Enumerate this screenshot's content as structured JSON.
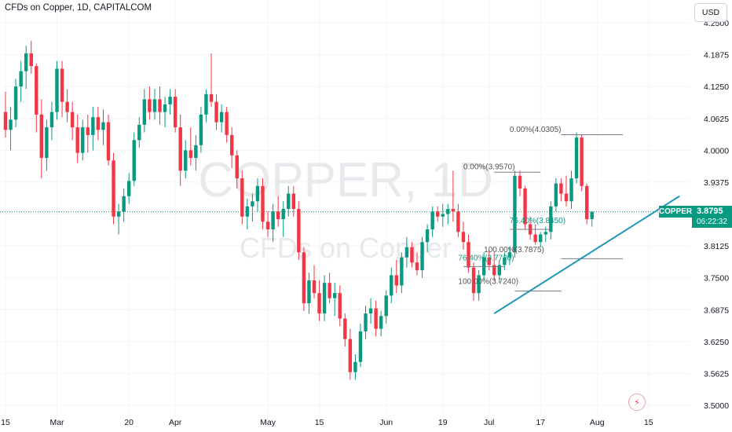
{
  "header": {
    "title": "CFDs on Copper, 1D, CAPITALCOM"
  },
  "currency": "USD",
  "watermark": {
    "symbol": "COPPER, 1D",
    "name": "CFDs on Copper"
  },
  "price_tag": {
    "symbol": "COPPER",
    "price": "3.8795",
    "countdown": "06:22:32"
  },
  "flash_icon": "lightning-icon",
  "colors": {
    "up": "#089981",
    "down": "#f23645",
    "trendline": "#2196b8",
    "fib_text_teal": "#089981",
    "fib_text_grey": "#555555"
  },
  "chart_data": {
    "type": "candlestick",
    "y_ticks": [
      "4.2500",
      "4.1875",
      "4.1250",
      "4.0625",
      "4.0000",
      "3.9375",
      "3.8750",
      "3.8125",
      "3.7500",
      "3.6875",
      "3.6250",
      "3.5625",
      "3.5000"
    ],
    "ylim": [
      3.5,
      4.25
    ],
    "x_ticks": [
      {
        "label": "15",
        "i": 0
      },
      {
        "label": "Mar",
        "i": 10
      },
      {
        "label": "20",
        "i": 24
      },
      {
        "label": "Apr",
        "i": 33
      },
      {
        "label": "May",
        "i": 51
      },
      {
        "label": "15",
        "i": 61
      },
      {
        "label": "Jun",
        "i": 74
      },
      {
        "label": "19",
        "i": 85
      },
      {
        "label": "Jul",
        "i": 94
      },
      {
        "label": "17",
        "i": 104
      },
      {
        "label": "Aug",
        "i": 115
      },
      {
        "label": "15",
        "i": 125
      }
    ],
    "candles": [
      [
        4.075,
        4.115,
        4.025,
        4.04
      ],
      [
        4.04,
        4.085,
        4.0,
        4.06
      ],
      [
        4.06,
        4.14,
        4.045,
        4.125
      ],
      [
        4.125,
        4.175,
        4.095,
        4.155
      ],
      [
        4.155,
        4.205,
        4.12,
        4.19
      ],
      [
        4.19,
        4.215,
        4.15,
        4.165
      ],
      [
        4.165,
        4.17,
        4.035,
        4.07
      ],
      [
        4.07,
        4.1,
        3.945,
        3.985
      ],
      [
        3.985,
        4.06,
        3.96,
        4.045
      ],
      [
        4.045,
        4.095,
        4.02,
        4.075
      ],
      [
        4.075,
        4.175,
        4.06,
        4.16
      ],
      [
        4.16,
        4.175,
        4.065,
        4.095
      ],
      [
        4.095,
        4.12,
        4.055,
        4.075
      ],
      [
        4.075,
        4.095,
        4.02,
        4.045
      ],
      [
        4.045,
        4.07,
        3.975,
        3.995
      ],
      [
        3.995,
        4.06,
        3.98,
        4.045
      ],
      [
        4.045,
        4.07,
        3.995,
        4.03
      ],
      [
        4.03,
        4.085,
        4.0,
        4.065
      ],
      [
        4.065,
        4.085,
        4.02,
        4.04
      ],
      [
        4.04,
        4.08,
        4.01,
        4.055
      ],
      [
        4.055,
        4.07,
        3.97,
        3.98
      ],
      [
        3.98,
        3.995,
        3.855,
        3.87
      ],
      [
        3.87,
        3.895,
        3.835,
        3.88
      ],
      [
        3.88,
        3.925,
        3.86,
        3.91
      ],
      [
        3.91,
        3.955,
        3.895,
        3.94
      ],
      [
        3.94,
        4.035,
        3.93,
        4.02
      ],
      [
        4.02,
        4.065,
        4.005,
        4.05
      ],
      [
        4.05,
        4.12,
        4.035,
        4.1
      ],
      [
        4.1,
        4.125,
        4.06,
        4.075
      ],
      [
        4.075,
        4.12,
        4.06,
        4.1
      ],
      [
        4.1,
        4.125,
        4.05,
        4.075
      ],
      [
        4.075,
        4.105,
        4.045,
        4.09
      ],
      [
        4.09,
        4.12,
        4.07,
        4.105
      ],
      [
        4.105,
        4.12,
        4.035,
        4.045
      ],
      [
        4.045,
        4.07,
        3.93,
        3.96
      ],
      [
        3.96,
        4.02,
        3.945,
        4.0
      ],
      [
        4.0,
        4.045,
        3.97,
        3.985
      ],
      [
        3.985,
        4.03,
        3.96,
        4.01
      ],
      [
        4.01,
        4.085,
        3.995,
        4.07
      ],
      [
        4.07,
        4.12,
        4.055,
        4.11
      ],
      [
        4.11,
        4.19,
        4.085,
        4.095
      ],
      [
        4.095,
        4.11,
        4.04,
        4.055
      ],
      [
        4.055,
        4.09,
        4.035,
        4.075
      ],
      [
        4.075,
        4.085,
        4.015,
        4.03
      ],
      [
        4.03,
        4.045,
        3.965,
        3.99
      ],
      [
        3.99,
        4.0,
        3.925,
        3.945
      ],
      [
        3.945,
        3.96,
        3.855,
        3.87
      ],
      [
        3.87,
        3.905,
        3.845,
        3.89
      ],
      [
        3.89,
        3.915,
        3.86,
        3.9
      ],
      [
        3.9,
        3.945,
        3.88,
        3.93
      ],
      [
        3.93,
        3.945,
        3.845,
        3.86
      ],
      [
        3.86,
        3.88,
        3.83,
        3.845
      ],
      [
        3.845,
        3.895,
        3.82,
        3.88
      ],
      [
        3.88,
        3.91,
        3.85,
        3.865
      ],
      [
        3.865,
        3.9,
        3.83,
        3.885
      ],
      [
        3.885,
        3.93,
        3.87,
        3.915
      ],
      [
        3.915,
        3.93,
        3.87,
        3.885
      ],
      [
        3.885,
        3.9,
        3.785,
        3.8
      ],
      [
        3.8,
        3.81,
        3.685,
        3.7
      ],
      [
        3.7,
        3.76,
        3.68,
        3.745
      ],
      [
        3.745,
        3.775,
        3.71,
        3.72
      ],
      [
        3.72,
        3.745,
        3.665,
        3.68
      ],
      [
        3.68,
        3.755,
        3.665,
        3.74
      ],
      [
        3.74,
        3.76,
        3.7,
        3.71
      ],
      [
        3.71,
        3.74,
        3.675,
        3.72
      ],
      [
        3.72,
        3.735,
        3.655,
        3.67
      ],
      [
        3.67,
        3.68,
        3.615,
        3.63
      ],
      [
        3.63,
        3.65,
        3.55,
        3.565
      ],
      [
        3.565,
        3.6,
        3.55,
        3.585
      ],
      [
        3.585,
        3.66,
        3.575,
        3.645
      ],
      [
        3.645,
        3.695,
        3.63,
        3.68
      ],
      [
        3.68,
        3.71,
        3.66,
        3.69
      ],
      [
        3.69,
        3.705,
        3.635,
        3.65
      ],
      [
        3.65,
        3.685,
        3.635,
        3.675
      ],
      [
        3.675,
        3.725,
        3.66,
        3.715
      ],
      [
        3.715,
        3.77,
        3.7,
        3.755
      ],
      [
        3.755,
        3.785,
        3.72,
        3.735
      ],
      [
        3.735,
        3.8,
        3.72,
        3.79
      ],
      [
        3.79,
        3.83,
        3.77,
        3.81
      ],
      [
        3.81,
        3.82,
        3.77,
        3.78
      ],
      [
        3.78,
        3.8,
        3.755,
        3.765
      ],
      [
        3.765,
        3.83,
        3.75,
        3.82
      ],
      [
        3.82,
        3.855,
        3.8,
        3.845
      ],
      [
        3.845,
        3.89,
        3.83,
        3.88
      ],
      [
        3.88,
        3.89,
        3.86,
        3.87
      ],
      [
        3.87,
        3.895,
        3.85,
        3.875
      ],
      [
        3.875,
        3.895,
        3.855,
        3.885
      ],
      [
        3.885,
        3.96,
        3.86,
        3.88
      ],
      [
        3.88,
        3.895,
        3.83,
        3.84
      ],
      [
        3.84,
        3.86,
        3.805,
        3.82
      ],
      [
        3.82,
        3.835,
        3.76,
        3.77
      ],
      [
        3.77,
        3.78,
        3.705,
        3.72
      ],
      [
        3.72,
        3.765,
        3.705,
        3.755
      ],
      [
        3.755,
        3.8,
        3.745,
        3.79
      ],
      [
        3.79,
        3.805,
        3.765,
        3.775
      ],
      [
        3.775,
        3.8,
        3.745,
        3.755
      ],
      [
        3.755,
        3.785,
        3.74,
        3.775
      ],
      [
        3.775,
        3.8,
        3.765,
        3.79
      ],
      [
        3.79,
        3.81,
        3.775,
        3.8
      ],
      [
        3.8,
        3.96,
        3.79,
        3.95
      ],
      [
        3.95,
        3.96,
        3.91,
        3.925
      ],
      [
        3.925,
        3.93,
        3.845,
        3.855
      ],
      [
        3.855,
        3.87,
        3.825,
        3.835
      ],
      [
        3.835,
        3.855,
        3.815,
        3.82
      ],
      [
        3.82,
        3.84,
        3.81,
        3.835
      ],
      [
        3.835,
        3.85,
        3.82,
        3.84
      ],
      [
        3.84,
        3.9,
        3.825,
        3.89
      ],
      [
        3.89,
        3.945,
        3.88,
        3.935
      ],
      [
        3.935,
        3.945,
        3.9,
        3.915
      ],
      [
        3.915,
        3.95,
        3.89,
        3.9
      ],
      [
        3.9,
        3.96,
        3.885,
        3.945
      ],
      [
        3.945,
        4.035,
        3.935,
        4.025
      ],
      [
        4.025,
        4.03,
        3.92,
        3.93
      ],
      [
        3.93,
        3.935,
        3.855,
        3.865
      ],
      [
        3.865,
        3.88,
        3.85,
        3.8795
      ]
    ],
    "trendline": {
      "from": [
        95,
        3.68
      ],
      "to": [
        131,
        3.91
      ]
    },
    "fibonacci": [
      {
        "label": "0.00%(3.9570)",
        "price": 3.957,
        "i_from": 95,
        "i_to": 104,
        "label_i": 89,
        "label_price": 3.963,
        "color": "grey"
      },
      {
        "label": "76.40%(3.8450)",
        "price": 3.845,
        "i_from": 98,
        "i_to": 106,
        "label_i": 98,
        "label_price": 3.857,
        "color": "teal"
      },
      {
        "label": "76.40%(3.7720)",
        "price": 3.772,
        "i_from": 89,
        "i_to": 97,
        "label_i": 88,
        "label_price": 3.784,
        "color": "teal"
      },
      {
        "label": "100.00%(3.7240)",
        "price": 3.724,
        "i_from": 99,
        "i_to": 108,
        "label_i": 88,
        "label_price": 3.738,
        "color": "grey"
      },
      {
        "label": "0.00%(4.0305)",
        "price": 4.0305,
        "i_from": 108,
        "i_to": 120,
        "label_i": 98,
        "label_price": 4.036,
        "color": "grey"
      },
      {
        "label": "100.00%(3.7875)",
        "price": 3.7875,
        "i_from": 108,
        "i_to": 120,
        "label_i": 93,
        "label_price": 3.8,
        "color": "grey"
      }
    ],
    "last_price": 3.8795
  }
}
